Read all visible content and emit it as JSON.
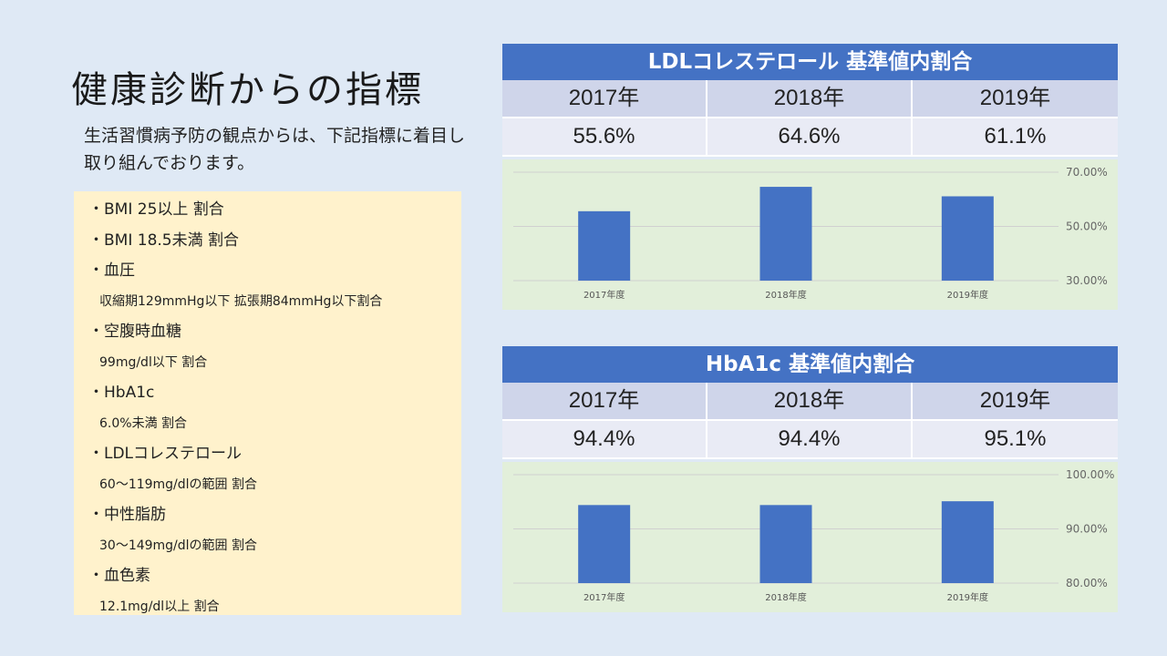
{
  "title": "健康診断からの指標",
  "subtitle": "生活習慣病予防の観点からは、下記指標に着目し取り組んでおります。",
  "indicators": [
    {
      "text": "BMI 25以上 割合",
      "bullet": true
    },
    {
      "text": "BMI 18.5未満 割合",
      "bullet": true
    },
    {
      "text": "血圧",
      "bullet": true
    },
    {
      "text": "収縮期129mmHg以下 拡張期84mmHg以下割合",
      "bullet": false
    },
    {
      "text": "空腹時血糖",
      "bullet": true
    },
    {
      "text": "99mg/dl以下 割合",
      "bullet": false
    },
    {
      "text": "HbA1c",
      "bullet": true
    },
    {
      "text": "6.0%未満 割合",
      "bullet": false
    },
    {
      "text": "LDLコレステロール",
      "bullet": true
    },
    {
      "text": "60～119mg/dlの範囲 割合",
      "bullet": false
    },
    {
      "text": "中性脂肪",
      "bullet": true
    },
    {
      "text": "30～149mg/dlの範囲 割合",
      "bullet": false
    },
    {
      "text": "血色素",
      "bullet": true
    },
    {
      "text": "12.1mg/dl以上 割合",
      "bullet": false
    }
  ],
  "ldl": {
    "header": "LDLコレステロール 基準値内割合",
    "years": [
      "2017年",
      "2018年",
      "2019年"
    ],
    "values": [
      "55.6%",
      "64.6%",
      "61.1%"
    ]
  },
  "hba1c": {
    "header": "HbA1c 基準値内割合",
    "years": [
      "2017年",
      "2018年",
      "2019年"
    ],
    "values": [
      "94.4%",
      "94.4%",
      "95.1%"
    ]
  },
  "colors": {
    "bar": "#4472c4",
    "grid": "#d0d0d0"
  },
  "chart_data": [
    {
      "type": "bar",
      "title": "LDLコレステロール 基準値内割合",
      "categories": [
        "2017年度",
        "2018年度",
        "2019年度"
      ],
      "values": [
        55.6,
        64.6,
        61.1
      ],
      "ylim": [
        30,
        70
      ],
      "yticks": [
        30,
        50,
        70
      ],
      "ytick_labels": [
        "30.00%",
        "50.00%",
        "70.00%"
      ],
      "axis_side": "right"
    },
    {
      "type": "bar",
      "title": "HbA1c 基準値内割合",
      "categories": [
        "2017年度",
        "2018年度",
        "2019年度"
      ],
      "values": [
        94.4,
        94.4,
        95.1
      ],
      "ylim": [
        80,
        100
      ],
      "yticks": [
        80,
        90,
        100
      ],
      "ytick_labels": [
        "80.00%",
        "90.00%",
        "100.00%"
      ],
      "axis_side": "right"
    }
  ]
}
